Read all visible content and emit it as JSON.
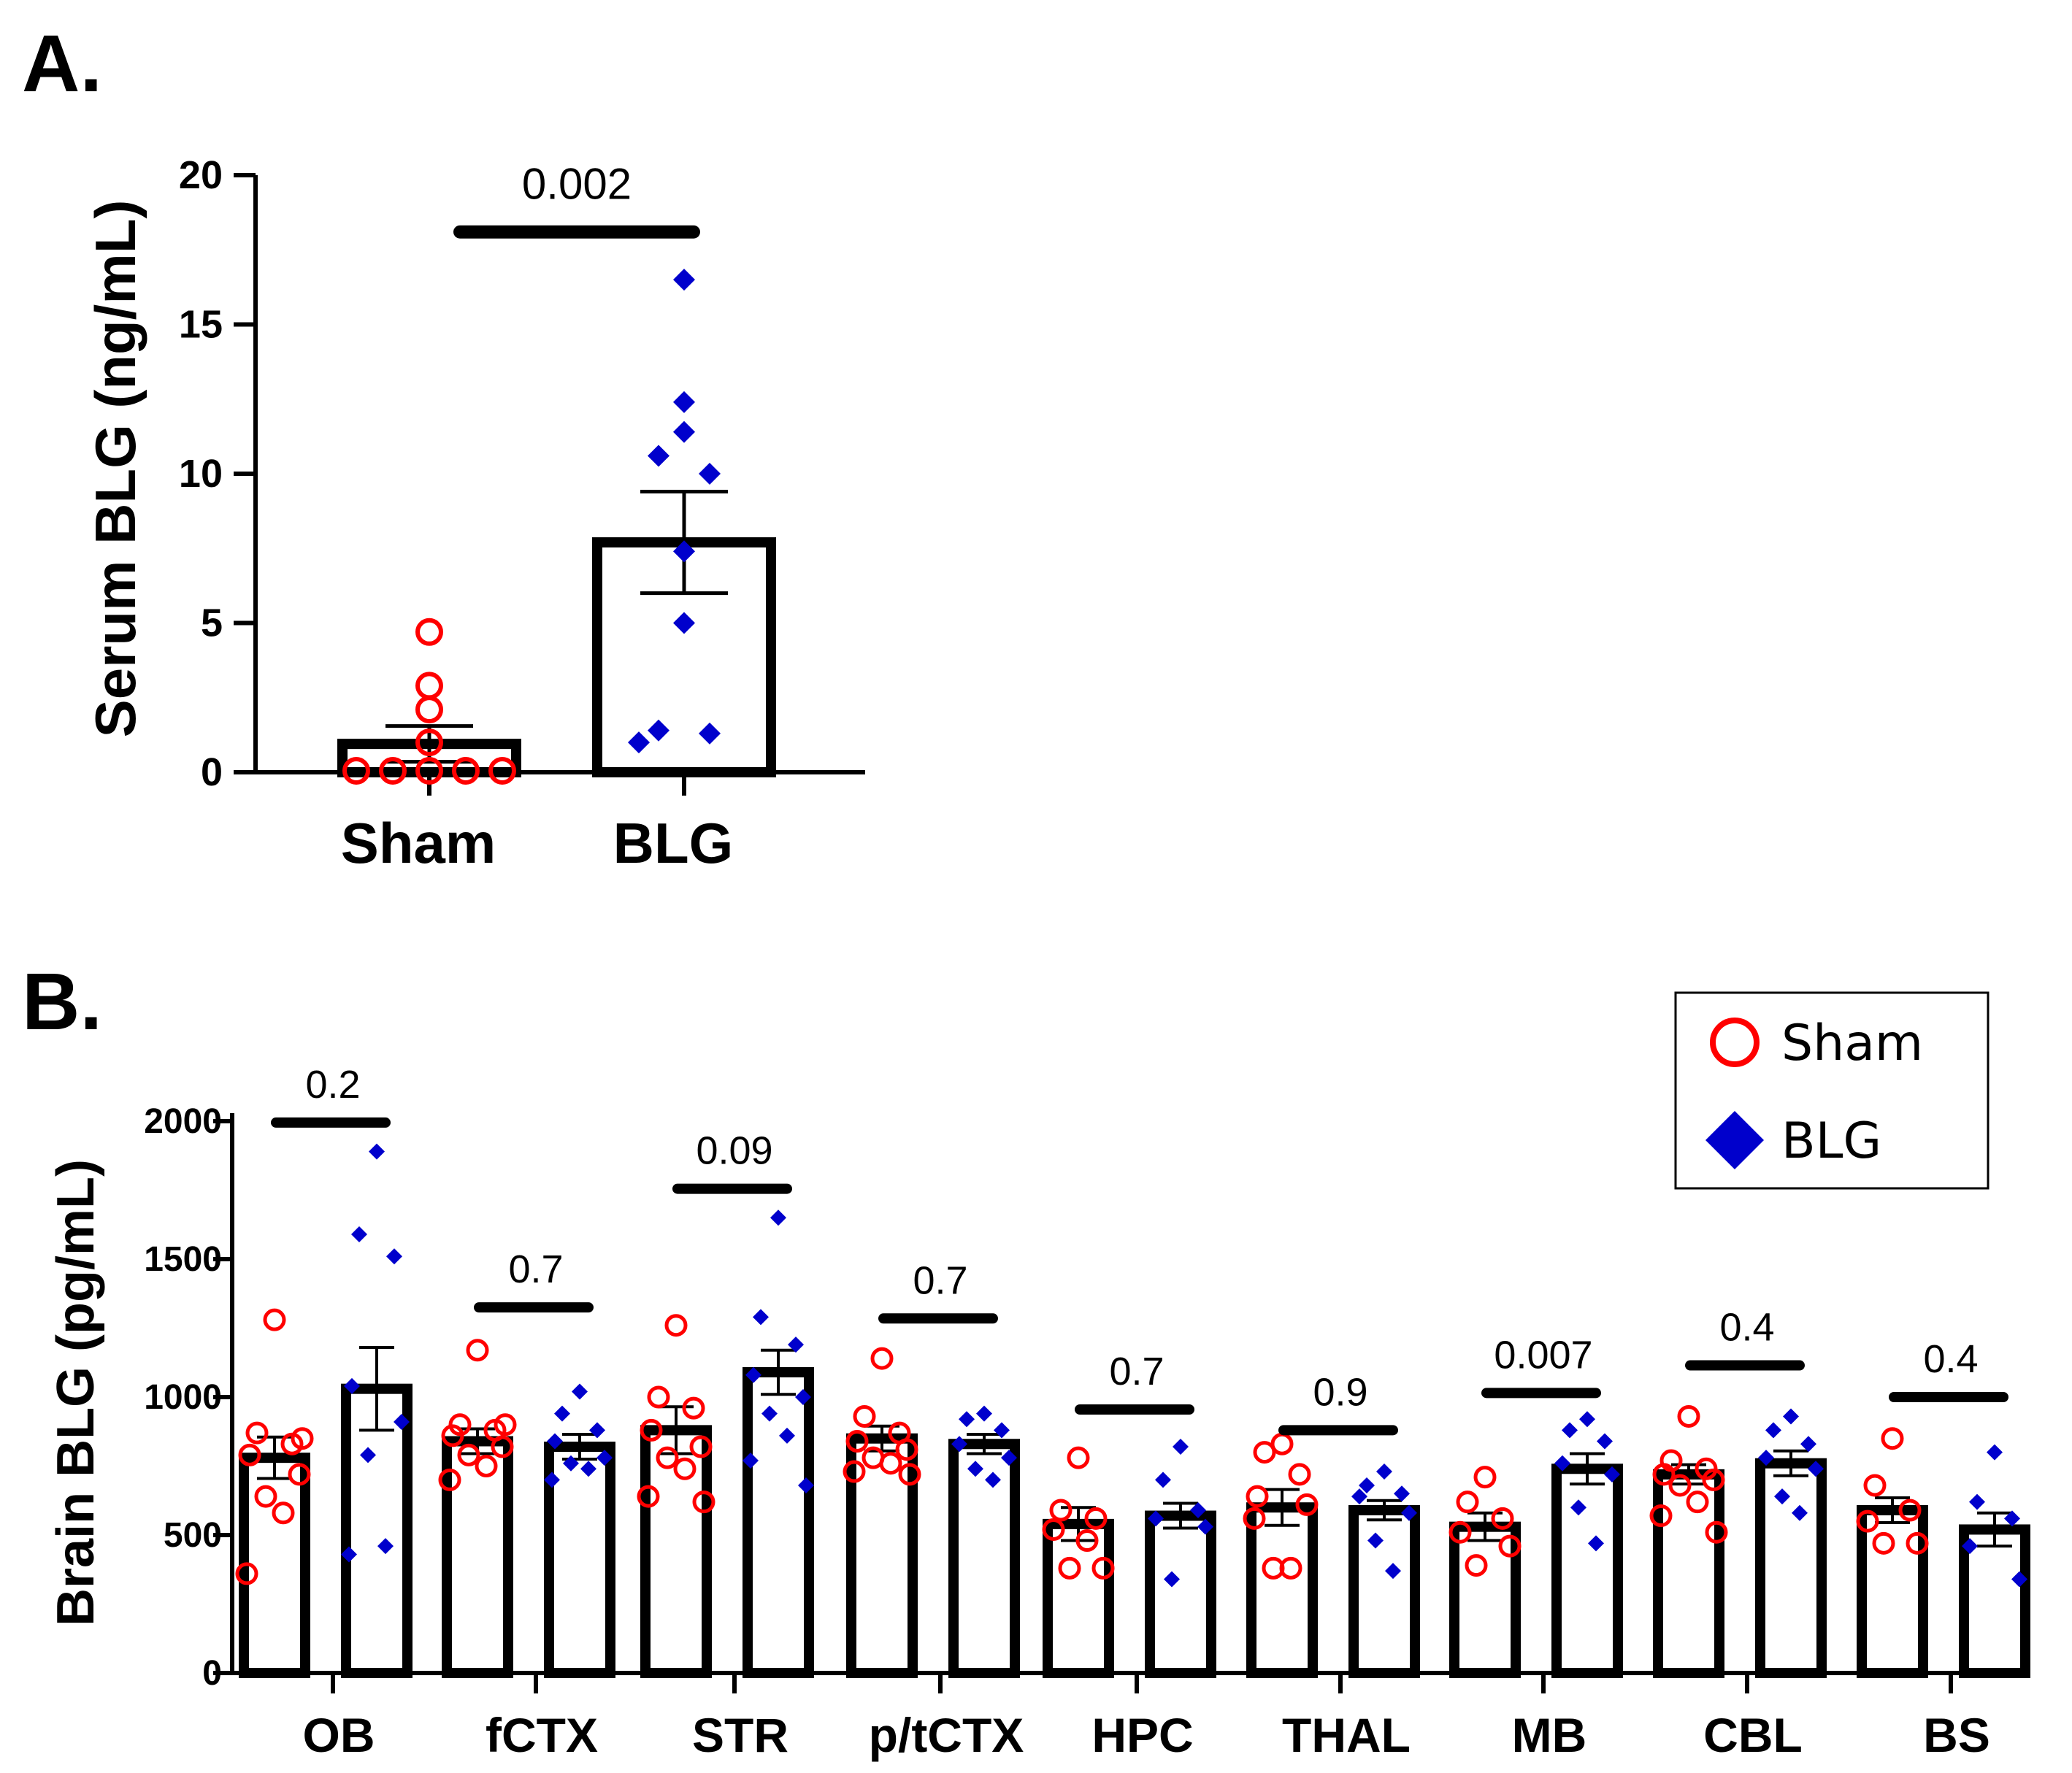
{
  "colors": {
    "sham": "#ff0000",
    "blg": "#0000cc",
    "axis": "#000000"
  },
  "chart_data": [
    {
      "panel": "A.",
      "type": "bar",
      "ylabel": "Serum BLG (ng/mL)",
      "xlabel": "",
      "ylim": [
        0,
        20
      ],
      "yticks": [
        0,
        5,
        10,
        15,
        20
      ],
      "categories": [
        "Sham",
        "BLG"
      ],
      "means": [
        0.95,
        7.7
      ],
      "sem": [
        0.6,
        1.7
      ],
      "points": [
        [
          4.7,
          2.9,
          2.1,
          1.0,
          0.05,
          0.05,
          0.05,
          0.05,
          0.05
        ],
        [
          16.5,
          12.4,
          11.4,
          10.6,
          10.0,
          7.4,
          5.0,
          1.4,
          1.3,
          1.0
        ]
      ],
      "comparison": {
        "label": "0.002",
        "y": 18.1
      }
    },
    {
      "panel": "B.",
      "type": "bar",
      "ylabel": "Brain BLG (pg/mL)",
      "xlabel": "",
      "ylim": [
        0,
        2000
      ],
      "yticks": [
        0,
        500,
        1000,
        1500,
        2000
      ],
      "categories": [
        "OB",
        "fCTX",
        "STR",
        "p/tCTX",
        "HPC",
        "THAL",
        "MB",
        "CBL",
        "BS"
      ],
      "series": [
        {
          "name": "Sham",
          "marker": "open-circle",
          "means": [
            780,
            840,
            880,
            850,
            540,
            600,
            530,
            720,
            590
          ],
          "sem": [
            75,
            45,
            85,
            45,
            60,
            65,
            50,
            35,
            45
          ],
          "points": [
            [
              1280,
              870,
              830,
              790,
              720,
              640,
              580,
              360,
              850
            ],
            [
              1170,
              900,
              880,
              860,
              820,
              790,
              750,
              700,
              900
            ],
            [
              1260,
              1000,
              960,
              880,
              820,
              780,
              740,
              640,
              620
            ],
            [
              1140,
              930,
              870,
              840,
              810,
              780,
              760,
              730,
              720
            ],
            [
              780,
              590,
              560,
              520,
              380,
              380,
              480
            ],
            [
              830,
              800,
              720,
              640,
              610,
              380,
              380,
              560
            ],
            [
              710,
              620,
              560,
              510,
              460,
              390
            ],
            [
              930,
              770,
              740,
              720,
              700,
              680,
              620,
              570,
              510
            ],
            [
              850,
              680,
              590,
              550,
              470,
              470
            ]
          ]
        },
        {
          "name": "BLG",
          "marker": "filled-diamond",
          "means": [
            1030,
            820,
            1090,
            830,
            570,
            590,
            740,
            760,
            520
          ],
          "sem": [
            150,
            45,
            80,
            35,
            45,
            35,
            55,
            45,
            60
          ],
          "points": [
            [
              1890,
              1590,
              1510,
              1040,
              910,
              790,
              460,
              430
            ],
            [
              1020,
              940,
              880,
              840,
              780,
              760,
              740,
              700
            ],
            [
              1650,
              1290,
              1190,
              1080,
              1000,
              940,
              860,
              770,
              680
            ],
            [
              940,
              920,
              880,
              830,
              780,
              740,
              700
            ],
            [
              820,
              700,
              590,
              560,
              530,
              340
            ],
            [
              730,
              680,
              650,
              640,
              580,
              480,
              370
            ],
            [
              920,
              880,
              840,
              760,
              720,
              600,
              470
            ],
            [
              930,
              880,
              830,
              780,
              740,
              640,
              580
            ],
            [
              800,
              620,
              560,
              460,
              340
            ]
          ]
        }
      ],
      "comparisons": [
        {
          "label": "0.2",
          "y": 1995
        },
        {
          "label": "0.7",
          "y": 1325
        },
        {
          "label": "0.09",
          "y": 1755
        },
        {
          "label": "0.7",
          "y": 1285
        },
        {
          "label": "0.7",
          "y": 955
        },
        {
          "label": "0.9",
          "y": 880
        },
        {
          "label": "0.007",
          "y": 1015
        },
        {
          "label": "0.4",
          "y": 1115
        },
        {
          "label": "0.4",
          "y": 1000
        }
      ],
      "legend": {
        "position": "top-right",
        "items": [
          {
            "label": "Sham",
            "marker": "open-circle"
          },
          {
            "label": "BLG",
            "marker": "filled-diamond"
          }
        ]
      }
    }
  ]
}
